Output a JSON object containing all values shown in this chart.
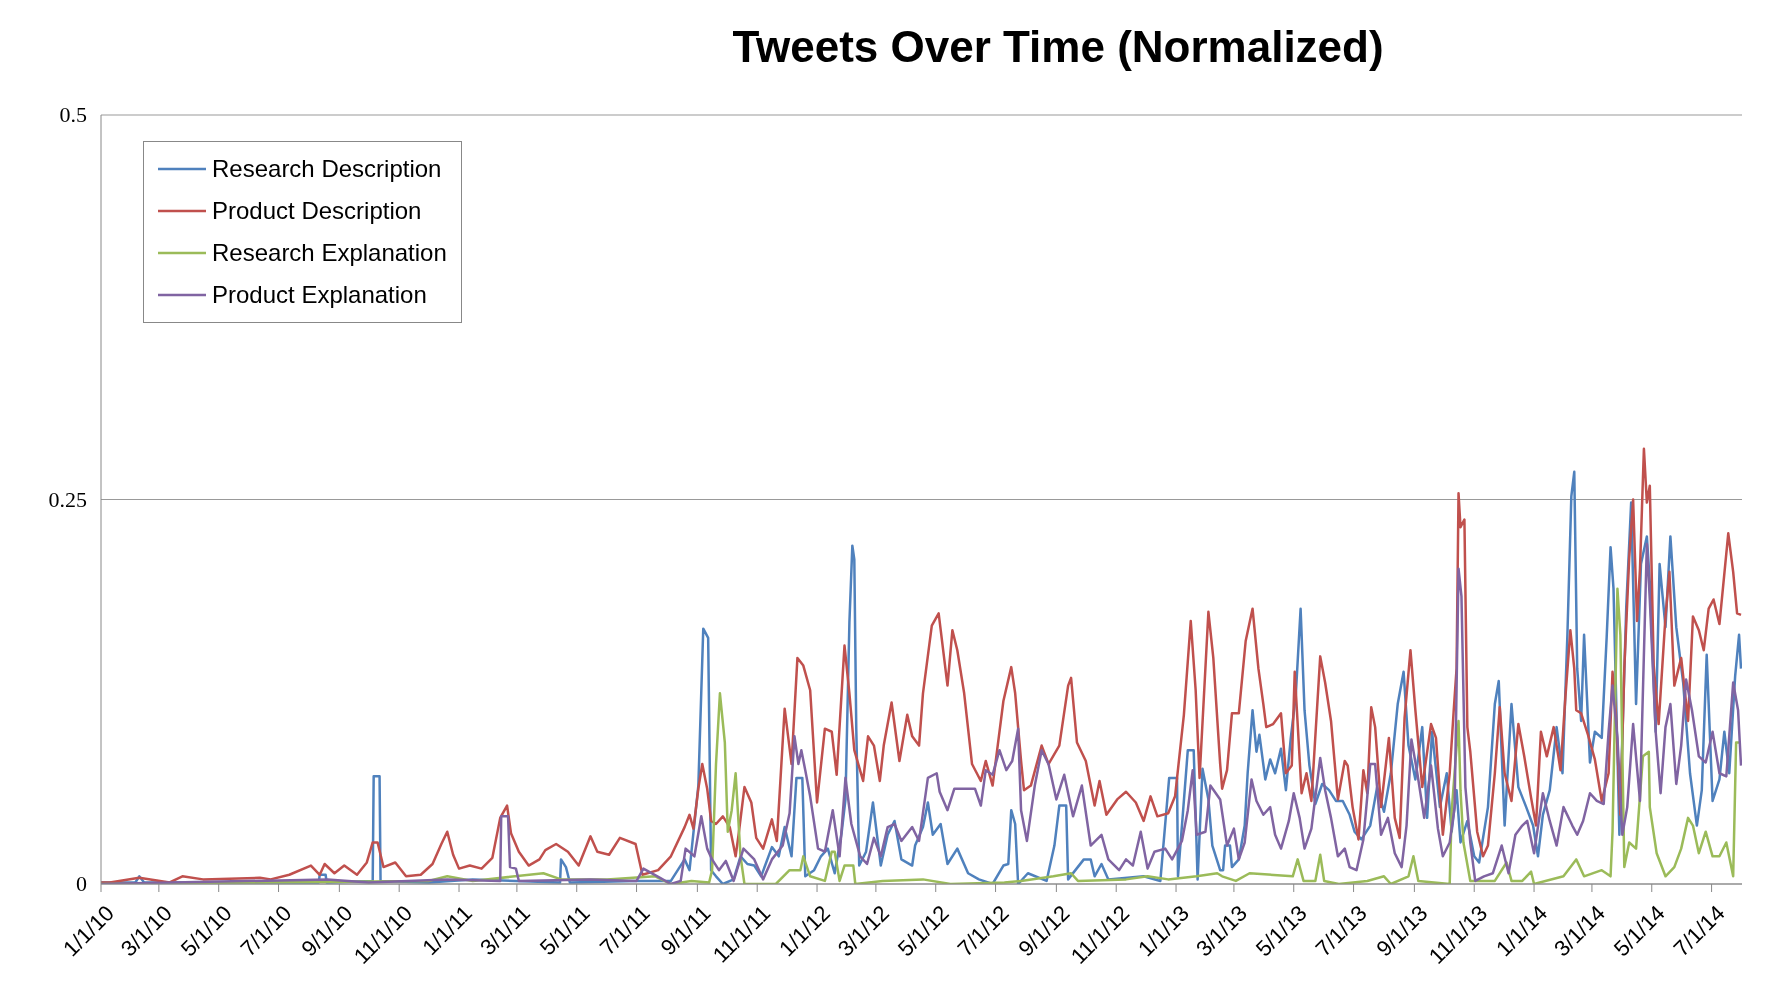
{
  "chart_data": {
    "type": "line",
    "title": "Tweets Over Time (Normalized)",
    "xlim": [
      "2010-01-01",
      "2014-08-01"
    ],
    "xticks": [
      {
        "value": "2010-01-01",
        "label": "1/1/10"
      },
      {
        "value": "2010-03-01",
        "label": "3/1/10"
      },
      {
        "value": "2010-05-01",
        "label": "5/1/10"
      },
      {
        "value": "2010-07-01",
        "label": "7/1/10"
      },
      {
        "value": "2010-09-01",
        "label": "9/1/10"
      },
      {
        "value": "2010-11-01",
        "label": "11/1/10"
      },
      {
        "value": "2011-01-01",
        "label": "1/1/11"
      },
      {
        "value": "2011-03-01",
        "label": "3/1/11"
      },
      {
        "value": "2011-05-01",
        "label": "5/1/11"
      },
      {
        "value": "2011-07-01",
        "label": "7/1/11"
      },
      {
        "value": "2011-09-01",
        "label": "9/1/11"
      },
      {
        "value": "2011-11-01",
        "label": "11/1/11"
      },
      {
        "value": "2012-01-01",
        "label": "1/1/12"
      },
      {
        "value": "2012-03-01",
        "label": "3/1/12"
      },
      {
        "value": "2012-05-01",
        "label": "5/1/12"
      },
      {
        "value": "2012-07-01",
        "label": "7/1/12"
      },
      {
        "value": "2012-09-01",
        "label": "9/1/12"
      },
      {
        "value": "2012-11-01",
        "label": "11/1/12"
      },
      {
        "value": "2013-01-01",
        "label": "1/1/13"
      },
      {
        "value": "2013-03-01",
        "label": "3/1/13"
      },
      {
        "value": "2013-05-01",
        "label": "5/1/13"
      },
      {
        "value": "2013-07-01",
        "label": "7/1/13"
      },
      {
        "value": "2013-09-01",
        "label": "9/1/13"
      },
      {
        "value": "2013-11-01",
        "label": "11/1/13"
      },
      {
        "value": "2014-01-01",
        "label": "1/1/14"
      },
      {
        "value": "2014-03-01",
        "label": "3/1/14"
      },
      {
        "value": "2014-05-01",
        "label": "5/1/14"
      },
      {
        "value": "2014-07-01",
        "label": "7/1/14"
      }
    ],
    "ylim": [
      0,
      0.5
    ],
    "yticks": [
      0,
      0.25,
      0.5
    ],
    "grid": "y",
    "legend": "top left",
    "series": [
      {
        "name": "Research Description",
        "color": "#4f81bd",
        "x": [
          "2010-01-01",
          "2010-02-05",
          "2010-02-09",
          "2010-02-14",
          "2010-08-11",
          "2010-08-12",
          "2010-08-18",
          "2010-08-19",
          "2010-10-05",
          "2010-10-06",
          "2010-10-12",
          "2010-10-13",
          "2010-12-01",
          "2011-01-15",
          "2011-04-14",
          "2011-04-15",
          "2011-04-20",
          "2011-04-24",
          "2011-07-01",
          "2011-08-05",
          "2011-08-19",
          "2011-08-24",
          "2011-09-02",
          "2011-09-07",
          "2011-09-12",
          "2011-09-15",
          "2011-09-20",
          "2011-09-27",
          "2011-10-08",
          "2011-10-15",
          "2011-10-22",
          "2011-10-29",
          "2011-11-05",
          "2011-11-16",
          "2011-11-23",
          "2011-11-29",
          "2011-12-06",
          "2011-12-11",
          "2011-12-17",
          "2011-12-20",
          "2011-12-29",
          "2012-01-05",
          "2012-01-12",
          "2012-01-19",
          "2012-01-26",
          "2012-01-30",
          "2012-02-03",
          "2012-02-06",
          "2012-02-08",
          "2012-02-10",
          "2012-02-13",
          "2012-02-20",
          "2012-02-27",
          "2012-03-06",
          "2012-03-13",
          "2012-03-20",
          "2012-03-27",
          "2012-04-07",
          "2012-04-10",
          "2012-04-18",
          "2012-04-23",
          "2012-04-28",
          "2012-05-06",
          "2012-05-13",
          "2012-05-23",
          "2012-06-03",
          "2012-06-14",
          "2012-06-28",
          "2012-07-09",
          "2012-07-14",
          "2012-07-17",
          "2012-07-21",
          "2012-07-24",
          "2012-08-03",
          "2012-08-22",
          "2012-08-30",
          "2012-09-04",
          "2012-09-11",
          "2012-09-13",
          "2012-09-29",
          "2012-10-06",
          "2012-10-10",
          "2012-10-17",
          "2012-10-24",
          "2012-11-29",
          "2012-12-16",
          "2012-12-25",
          "2013-01-02",
          "2013-01-03",
          "2013-01-13",
          "2013-01-19",
          "2013-01-23",
          "2013-01-28",
          "2013-02-03",
          "2013-02-07",
          "2013-02-15",
          "2013-02-18",
          "2013-02-20",
          "2013-02-25",
          "2013-02-27",
          "2013-03-06",
          "2013-03-12",
          "2013-03-15",
          "2013-03-20",
          "2013-03-24",
          "2013-03-27",
          "2013-04-02",
          "2013-04-07",
          "2013-04-12",
          "2013-04-18",
          "2013-04-23",
          "2013-04-28",
          "2013-05-03",
          "2013-05-08",
          "2013-05-12",
          "2013-05-17",
          "2013-05-23",
          "2013-05-30",
          "2013-06-06",
          "2013-06-13",
          "2013-06-20",
          "2013-06-27",
          "2013-07-02",
          "2013-07-09",
          "2013-07-18",
          "2013-07-25",
          "2013-08-01",
          "2013-08-08",
          "2013-08-15",
          "2013-08-21",
          "2013-08-26",
          "2013-09-02",
          "2013-09-09",
          "2013-09-14",
          "2013-09-19",
          "2013-09-27",
          "2013-10-04",
          "2013-10-09",
          "2013-10-14",
          "2013-10-18",
          "2013-10-25",
          "2013-11-01",
          "2013-11-06",
          "2013-11-15",
          "2013-11-22",
          "2013-11-26",
          "2013-12-02",
          "2013-12-09",
          "2013-12-16",
          "2013-12-24",
          "2013-12-31",
          "2014-01-05",
          "2014-01-10",
          "2014-01-17",
          "2014-01-24",
          "2014-01-30",
          "2014-02-04",
          "2014-02-08",
          "2014-02-11",
          "2014-02-14",
          "2014-02-18",
          "2014-02-21",
          "2014-02-27",
          "2014-03-04",
          "2014-03-11",
          "2014-03-16",
          "2014-03-20",
          "2014-03-23",
          "2014-03-29",
          "2014-04-01",
          "2014-04-05",
          "2014-04-10",
          "2014-04-15",
          "2014-04-20",
          "2014-04-26",
          "2014-04-29",
          "2014-05-05",
          "2014-05-09",
          "2014-05-15",
          "2014-05-20",
          "2014-05-26",
          "2014-06-02",
          "2014-06-09",
          "2014-06-16",
          "2014-06-21",
          "2014-06-26",
          "2014-07-02",
          "2014-07-09",
          "2014-07-14",
          "2014-07-19",
          "2014-07-25",
          "2014-07-29",
          "2014-07-31"
        ],
        "values": [
          0.001,
          0.001,
          0.005,
          0.001,
          0.001,
          0.006,
          0.006,
          0.001,
          0.002,
          0.07,
          0.07,
          0.002,
          0.001,
          0.003,
          0.001,
          0.016,
          0.011,
          0.001,
          0.002,
          0.002,
          0.016,
          0.009,
          0.064,
          0.166,
          0.16,
          0.009,
          0.005,
          0.0,
          0.003,
          0.018,
          0.013,
          0.012,
          0.005,
          0.024,
          0.018,
          0.037,
          0.018,
          0.069,
          0.069,
          0.005,
          0.009,
          0.018,
          0.023,
          0.007,
          0.033,
          0.055,
          0.17,
          0.22,
          0.211,
          0.101,
          0.012,
          0.021,
          0.053,
          0.012,
          0.032,
          0.041,
          0.016,
          0.012,
          0.025,
          0.037,
          0.053,
          0.032,
          0.039,
          0.013,
          0.023,
          0.007,
          0.003,
          0.0,
          0.012,
          0.013,
          0.048,
          0.039,
          0.0,
          0.007,
          0.002,
          0.025,
          0.051,
          0.051,
          0.003,
          0.016,
          0.016,
          0.005,
          0.013,
          0.003,
          0.005,
          0.002,
          0.069,
          0.069,
          0.005,
          0.087,
          0.087,
          0.003,
          0.075,
          0.055,
          0.025,
          0.009,
          0.009,
          0.025,
          0.025,
          0.011,
          0.016,
          0.038,
          0.072,
          0.113,
          0.086,
          0.097,
          0.068,
          0.081,
          0.072,
          0.088,
          0.061,
          0.095,
          0.122,
          0.179,
          0.113,
          0.077,
          0.052,
          0.065,
          0.061,
          0.054,
          0.054,
          0.045,
          0.034,
          0.029,
          0.038,
          0.063,
          0.047,
          0.072,
          0.117,
          0.138,
          0.09,
          0.068,
          0.102,
          0.043,
          0.099,
          0.05,
          0.072,
          0.034,
          0.061,
          0.027,
          0.041,
          0.018,
          0.014,
          0.05,
          0.117,
          0.132,
          0.038,
          0.117,
          0.063,
          0.05,
          0.038,
          0.018,
          0.045,
          0.061,
          0.102,
          0.072,
          0.162,
          0.252,
          0.268,
          0.14,
          0.106,
          0.162,
          0.079,
          0.099,
          0.095,
          0.16,
          0.219,
          0.192,
          0.032,
          0.095,
          0.18,
          0.248,
          0.117,
          0.208,
          0.226,
          0.196,
          0.099,
          0.208,
          0.167,
          0.226,
          0.167,
          0.131,
          0.072,
          0.038,
          0.061,
          0.149,
          0.054,
          0.068,
          0.099,
          0.072,
          0.135,
          0.162,
          0.14
        ]
      },
      {
        "name": "Product Description",
        "color": "#c0504d",
        "x": [
          "2010-01-01",
          "2010-01-10",
          "2010-02-09",
          "2010-03-12",
          "2010-03-25",
          "2010-04-15",
          "2010-06-12",
          "2010-06-23",
          "2010-07-12",
          "2010-08-03",
          "2010-08-12",
          "2010-08-17",
          "2010-08-27",
          "2010-09-06",
          "2010-09-19",
          "2010-09-29",
          "2010-10-05",
          "2010-10-10",
          "2010-10-16",
          "2010-10-28",
          "2010-11-08",
          "2010-11-23",
          "2010-12-05",
          "2010-12-14",
          "2010-12-20",
          "2010-12-26",
          "2011-01-01",
          "2011-01-12",
          "2011-01-24",
          "2011-02-04",
          "2011-02-12",
          "2011-02-19",
          "2011-02-23",
          "2011-03-03",
          "2011-03-13",
          "2011-03-24",
          "2011-03-30",
          "2011-04-10",
          "2011-04-22",
          "2011-05-03",
          "2011-05-15",
          "2011-05-22",
          "2011-06-03",
          "2011-06-14",
          "2011-06-30",
          "2011-07-07",
          "2011-07-23",
          "2011-08-05",
          "2011-08-19",
          "2011-08-24",
          "2011-08-28",
          "2011-09-02",
          "2011-09-06",
          "2011-09-11",
          "2011-09-15",
          "2011-09-20",
          "2011-09-27",
          "2011-10-04",
          "2011-10-10",
          "2011-10-13",
          "2011-10-19",
          "2011-10-26",
          "2011-10-31",
          "2011-11-07",
          "2011-11-16",
          "2011-11-21",
          "2011-11-29",
          "2011-12-06",
          "2011-12-12",
          "2011-12-18",
          "2011-12-25",
          "2012-01-01",
          "2012-01-09",
          "2012-01-16",
          "2012-01-21",
          "2012-01-29",
          "2012-02-03",
          "2012-02-08",
          "2012-02-17",
          "2012-02-22",
          "2012-02-28",
          "2012-03-05",
          "2012-03-09",
          "2012-03-17",
          "2012-03-25",
          "2012-04-02",
          "2012-04-07",
          "2012-04-14",
          "2012-04-18",
          "2012-04-27",
          "2012-05-04",
          "2012-05-13",
          "2012-05-18",
          "2012-05-23",
          "2012-05-30",
          "2012-06-07",
          "2012-06-16",
          "2012-06-21",
          "2012-06-28",
          "2012-07-09",
          "2012-07-17",
          "2012-07-21",
          "2012-07-27",
          "2012-07-30",
          "2012-08-06",
          "2012-08-17",
          "2012-08-24",
          "2012-09-04",
          "2012-09-13",
          "2012-09-16",
          "2012-09-22",
          "2012-10-01",
          "2012-10-10",
          "2012-10-15",
          "2012-10-22",
          "2012-11-02",
          "2012-11-11",
          "2012-11-21",
          "2012-11-29",
          "2012-12-06",
          "2012-12-13",
          "2012-12-24",
          "2012-12-31",
          "2013-01-09",
          "2013-01-16",
          "2013-01-21",
          "2013-01-25",
          "2013-02-03",
          "2013-02-08",
          "2013-02-15",
          "2013-02-17",
          "2013-02-22",
          "2013-02-27",
          "2013-03-06",
          "2013-03-13",
          "2013-03-20",
          "2013-03-26",
          "2013-03-31",
          "2013-04-03",
          "2013-04-10",
          "2013-04-18",
          "2013-04-23",
          "2013-04-29",
          "2013-05-02",
          "2013-05-09",
          "2013-05-14",
          "2013-05-19",
          "2013-05-28",
          "2013-06-02",
          "2013-06-08",
          "2013-06-15",
          "2013-06-22",
          "2013-06-25",
          "2013-06-30",
          "2013-07-06",
          "2013-07-11",
          "2013-07-15",
          "2013-07-19",
          "2013-07-23",
          "2013-07-29",
          "2013-08-06",
          "2013-08-12",
          "2013-08-17",
          "2013-08-22",
          "2013-08-28",
          "2013-09-02",
          "2013-09-09",
          "2013-09-18",
          "2013-09-23",
          "2013-09-30",
          "2013-10-07",
          "2013-10-11",
          "2013-10-14",
          "2013-10-16",
          "2013-10-18",
          "2013-10-22",
          "2013-10-25",
          "2013-10-28",
          "2013-11-04",
          "2013-11-10",
          "2013-11-15",
          "2013-11-22",
          "2013-11-27",
          "2013-12-02",
          "2013-12-09",
          "2013-12-16",
          "2013-12-22",
          "2013-12-29",
          "2014-01-03",
          "2014-01-08",
          "2014-01-14",
          "2014-01-21",
          "2014-01-28",
          "2014-02-02",
          "2014-02-07",
          "2014-02-11",
          "2014-02-13",
          "2014-02-18",
          "2014-02-25",
          "2014-03-04",
          "2014-03-11",
          "2014-03-18",
          "2014-03-22",
          "2014-03-25",
          "2014-03-30",
          "2014-04-03",
          "2014-04-08",
          "2014-04-12",
          "2014-04-16",
          "2014-04-19",
          "2014-04-23",
          "2014-04-26",
          "2014-04-29",
          "2014-05-03",
          "2014-05-08",
          "2014-05-15",
          "2014-05-19",
          "2014-05-24",
          "2014-05-31",
          "2014-06-07",
          "2014-06-12",
          "2014-06-18",
          "2014-06-23",
          "2014-06-28",
          "2014-07-03",
          "2014-07-09",
          "2014-07-18",
          "2014-07-23",
          "2014-07-27",
          "2014-07-31"
        ],
        "values": [
          0.001,
          0.001,
          0.004,
          0.001,
          0.005,
          0.003,
          0.004,
          0.003,
          0.006,
          0.012,
          0.006,
          0.013,
          0.007,
          0.012,
          0.006,
          0.014,
          0.027,
          0.027,
          0.011,
          0.014,
          0.005,
          0.006,
          0.013,
          0.026,
          0.034,
          0.019,
          0.01,
          0.012,
          0.01,
          0.017,
          0.043,
          0.051,
          0.033,
          0.021,
          0.012,
          0.016,
          0.022,
          0.026,
          0.021,
          0.012,
          0.031,
          0.021,
          0.019,
          0.03,
          0.026,
          0.006,
          0.009,
          0.018,
          0.037,
          0.045,
          0.036,
          0.062,
          0.078,
          0.062,
          0.041,
          0.039,
          0.044,
          0.037,
          0.018,
          0.032,
          0.063,
          0.053,
          0.03,
          0.023,
          0.042,
          0.028,
          0.114,
          0.078,
          0.147,
          0.142,
          0.126,
          0.053,
          0.101,
          0.099,
          0.071,
          0.155,
          0.124,
          0.087,
          0.067,
          0.096,
          0.09,
          0.067,
          0.09,
          0.118,
          0.08,
          0.11,
          0.096,
          0.09,
          0.124,
          0.168,
          0.176,
          0.129,
          0.165,
          0.152,
          0.124,
          0.078,
          0.067,
          0.08,
          0.064,
          0.119,
          0.141,
          0.124,
          0.08,
          0.061,
          0.064,
          0.09,
          0.078,
          0.09,
          0.129,
          0.134,
          0.092,
          0.08,
          0.051,
          0.067,
          0.045,
          0.055,
          0.06,
          0.053,
          0.041,
          0.057,
          0.044,
          0.046,
          0.057,
          0.11,
          0.171,
          0.126,
          0.069,
          0.177,
          0.147,
          0.078,
          0.062,
          0.074,
          0.111,
          0.111,
          0.158,
          0.179,
          0.14,
          0.117,
          0.102,
          0.104,
          0.111,
          0.072,
          0.077,
          0.138,
          0.059,
          0.072,
          0.054,
          0.148,
          0.131,
          0.106,
          0.055,
          0.08,
          0.077,
          0.05,
          0.029,
          0.074,
          0.059,
          0.115,
          0.102,
          0.05,
          0.095,
          0.043,
          0.03,
          0.108,
          0.152,
          0.113,
          0.063,
          0.104,
          0.095,
          0.032,
          0.072,
          0.112,
          0.14,
          0.254,
          0.232,
          0.237,
          0.102,
          0.086,
          0.034,
          0.018,
          0.025,
          0.072,
          0.115,
          0.072,
          0.054,
          0.104,
          0.083,
          0.056,
          0.038,
          0.099,
          0.083,
          0.102,
          0.074,
          0.122,
          0.165,
          0.14,
          0.113,
          0.111,
          0.097,
          0.081,
          0.054,
          0.072,
          0.138,
          0.117,
          0.045,
          0.14,
          0.212,
          0.25,
          0.171,
          0.205,
          0.283,
          0.248,
          0.259,
          0.142,
          0.104,
          0.174,
          0.203,
          0.129,
          0.147,
          0.106,
          0.174,
          0.165,
          0.152,
          0.179,
          0.185,
          0.169,
          0.228,
          0.203,
          0.176,
          0.175
        ]
      },
      {
        "name": "Research Explanation",
        "color": "#9bbb59",
        "x": [
          "2010-01-01",
          "2010-06-01",
          "2010-12-01",
          "2010-12-20",
          "2011-01-15",
          "2011-03-28",
          "2011-04-15",
          "2011-06-01",
          "2011-07-20",
          "2011-08-05",
          "2011-08-26",
          "2011-09-13",
          "2011-09-16",
          "2011-09-20",
          "2011-09-24",
          "2011-09-29",
          "2011-10-02",
          "2011-10-06",
          "2011-10-10",
          "2011-10-15",
          "2011-10-19",
          "2011-11-20",
          "2011-12-04",
          "2011-12-15",
          "2011-12-18",
          "2011-12-25",
          "2012-01-09",
          "2012-01-16",
          "2012-01-19",
          "2012-01-24",
          "2012-01-29",
          "2012-02-07",
          "2012-02-09",
          "2012-03-08",
          "2012-04-18",
          "2012-05-16",
          "2012-07-10",
          "2012-07-27",
          "2012-08-29",
          "2012-09-16",
          "2012-09-23",
          "2012-11-11",
          "2012-12-03",
          "2012-12-24",
          "2013-01-22",
          "2013-02-12",
          "2013-02-17",
          "2013-03-03",
          "2013-03-17",
          "2013-04-30",
          "2013-05-05",
          "2013-05-11",
          "2013-05-23",
          "2013-05-28",
          "2013-06-01",
          "2013-06-16",
          "2013-07-15",
          "2013-08-01",
          "2013-08-08",
          "2013-08-26",
          "2013-08-31",
          "2013-09-05",
          "2013-10-07",
          "2013-10-09",
          "2013-10-16",
          "2013-10-18",
          "2013-10-21",
          "2013-10-28",
          "2013-11-22",
          "2013-12-04",
          "2013-12-09",
          "2013-12-20",
          "2013-12-29",
          "2014-01-01",
          "2014-01-31",
          "2014-02-13",
          "2014-02-21",
          "2014-03-11",
          "2014-03-20",
          "2014-03-22",
          "2014-03-27",
          "2014-03-30",
          "2014-04-03",
          "2014-04-08",
          "2014-04-15",
          "2014-04-22",
          "2014-04-28",
          "2014-04-29",
          "2014-05-06",
          "2014-05-15",
          "2014-05-24",
          "2014-05-31",
          "2014-06-07",
          "2014-06-12",
          "2014-06-18",
          "2014-06-25",
          "2014-07-02",
          "2014-07-09",
          "2014-07-16",
          "2014-07-23",
          "2014-07-26",
          "2014-07-31"
        ],
        "values": [
          0.0,
          0.001,
          0.002,
          0.005,
          0.002,
          0.007,
          0.003,
          0.003,
          0.005,
          0.0,
          0.002,
          0.001,
          0.009,
          0.078,
          0.124,
          0.092,
          0.034,
          0.048,
          0.072,
          0.018,
          0.0,
          0.0,
          0.009,
          0.009,
          0.018,
          0.005,
          0.002,
          0.021,
          0.021,
          0.002,
          0.012,
          0.012,
          0.0,
          0.002,
          0.003,
          0.0,
          0.001,
          0.002,
          0.005,
          0.007,
          0.002,
          0.003,
          0.005,
          0.003,
          0.005,
          0.007,
          0.005,
          0.002,
          0.007,
          0.005,
          0.016,
          0.002,
          0.002,
          0.019,
          0.002,
          0.0,
          0.002,
          0.005,
          0.0,
          0.005,
          0.018,
          0.002,
          0.0,
          0.047,
          0.106,
          0.061,
          0.027,
          0.002,
          0.002,
          0.014,
          0.002,
          0.002,
          0.008,
          0.0,
          0.005,
          0.016,
          0.005,
          0.009,
          0.005,
          0.034,
          0.192,
          0.162,
          0.011,
          0.027,
          0.023,
          0.083,
          0.086,
          0.05,
          0.02,
          0.005,
          0.011,
          0.023,
          0.043,
          0.038,
          0.02,
          0.034,
          0.018,
          0.018,
          0.027,
          0.005,
          0.092,
          0.092
        ]
      },
      {
        "name": "Product Explanation",
        "color": "#8064a2",
        "x": [
          "2010-01-01",
          "2010-08-20",
          "2010-10-01",
          "2010-12-20",
          "2011-02-12",
          "2011-02-13",
          "2011-02-20",
          "2011-02-22",
          "2011-02-28",
          "2011-03-03",
          "2011-05-15",
          "2011-07-01",
          "2011-07-08",
          "2011-07-25",
          "2011-08-05",
          "2011-08-15",
          "2011-08-20",
          "2011-08-29",
          "2011-09-05",
          "2011-09-11",
          "2011-09-16",
          "2011-09-23",
          "2011-09-30",
          "2011-10-08",
          "2011-10-18",
          "2011-10-29",
          "2011-11-07",
          "2011-11-16",
          "2011-11-27",
          "2011-12-04",
          "2011-12-09",
          "2011-12-13",
          "2011-12-16",
          "2011-12-20",
          "2011-12-25",
          "2012-01-02",
          "2012-01-09",
          "2012-01-17",
          "2012-01-24",
          "2012-01-30",
          "2012-02-05",
          "2012-02-14",
          "2012-02-21",
          "2012-02-28",
          "2012-03-06",
          "2012-03-13",
          "2012-03-20",
          "2012-03-27",
          "2012-04-07",
          "2012-04-14",
          "2012-04-23",
          "2012-05-02",
          "2012-05-05",
          "2012-05-13",
          "2012-05-20",
          "2012-06-03",
          "2012-06-10",
          "2012-06-16",
          "2012-06-21",
          "2012-06-28",
          "2012-07-05",
          "2012-07-12",
          "2012-07-18",
          "2012-07-24",
          "2012-07-27",
          "2012-08-02",
          "2012-08-10",
          "2012-08-17",
          "2012-08-24",
          "2012-09-01",
          "2012-09-09",
          "2012-09-18",
          "2012-09-27",
          "2012-10-06",
          "2012-10-17",
          "2012-10-24",
          "2012-11-04",
          "2012-11-11",
          "2012-11-18",
          "2012-11-26",
          "2012-12-03",
          "2012-12-10",
          "2012-12-21",
          "2012-12-28",
          "2013-01-07",
          "2013-01-13",
          "2013-01-18",
          "2013-01-22",
          "2013-01-31",
          "2013-02-05",
          "2013-02-15",
          "2013-02-22",
          "2013-03-01",
          "2013-03-06",
          "2013-03-12",
          "2013-03-19",
          "2013-03-24",
          "2013-03-31",
          "2013-04-07",
          "2013-04-12",
          "2013-04-18",
          "2013-04-26",
          "2013-05-01",
          "2013-05-07",
          "2013-05-12",
          "2013-05-19",
          "2013-05-28",
          "2013-06-02",
          "2013-06-08",
          "2013-06-15",
          "2013-06-22",
          "2013-06-27",
          "2013-07-04",
          "2013-07-11",
          "2013-07-18",
          "2013-07-23",
          "2013-07-29",
          "2013-08-05",
          "2013-08-12",
          "2013-08-19",
          "2013-08-24",
          "2013-08-29",
          "2013-09-04",
          "2013-09-11",
          "2013-09-18",
          "2013-09-25",
          "2013-09-30",
          "2013-10-07",
          "2013-10-12",
          "2013-10-16",
          "2013-10-19",
          "2013-10-23",
          "2013-10-28",
          "2013-11-02",
          "2013-11-11",
          "2013-11-20",
          "2013-11-29",
          "2013-12-06",
          "2013-12-13",
          "2013-12-20",
          "2013-12-25",
          "2014-01-01",
          "2014-01-10",
          "2014-01-17",
          "2014-01-24",
          "2014-01-31",
          "2014-02-09",
          "2014-02-14",
          "2014-02-20",
          "2014-02-27",
          "2014-03-06",
          "2014-03-13",
          "2014-03-18",
          "2014-03-22",
          "2014-03-27",
          "2014-04-01",
          "2014-04-06",
          "2014-04-12",
          "2014-04-19",
          "2014-04-26",
          "2014-04-29",
          "2014-05-05",
          "2014-05-10",
          "2014-05-15",
          "2014-05-20",
          "2014-05-26",
          "2014-05-31",
          "2014-06-05",
          "2014-06-11",
          "2014-06-18",
          "2014-06-25",
          "2014-07-02",
          "2014-07-09",
          "2014-07-16",
          "2014-07-23",
          "2014-07-28",
          "2014-07-31"
        ],
        "values": [
          0.0,
          0.003,
          0.001,
          0.003,
          0.002,
          0.044,
          0.044,
          0.011,
          0.01,
          0.002,
          0.003,
          0.002,
          0.01,
          0.004,
          0.0,
          0.002,
          0.023,
          0.018,
          0.044,
          0.023,
          0.016,
          0.009,
          0.015,
          0.002,
          0.023,
          0.016,
          0.003,
          0.016,
          0.025,
          0.046,
          0.096,
          0.078,
          0.087,
          0.074,
          0.057,
          0.023,
          0.021,
          0.048,
          0.018,
          0.069,
          0.039,
          0.018,
          0.013,
          0.03,
          0.018,
          0.037,
          0.039,
          0.028,
          0.037,
          0.028,
          0.069,
          0.072,
          0.06,
          0.048,
          0.062,
          0.062,
          0.062,
          0.051,
          0.074,
          0.071,
          0.087,
          0.074,
          0.08,
          0.101,
          0.048,
          0.028,
          0.064,
          0.087,
          0.078,
          0.055,
          0.071,
          0.044,
          0.064,
          0.025,
          0.032,
          0.016,
          0.009,
          0.016,
          0.012,
          0.034,
          0.01,
          0.021,
          0.023,
          0.016,
          0.028,
          0.048,
          0.074,
          0.032,
          0.034,
          0.064,
          0.055,
          0.025,
          0.036,
          0.016,
          0.027,
          0.068,
          0.054,
          0.045,
          0.05,
          0.032,
          0.023,
          0.041,
          0.059,
          0.043,
          0.023,
          0.036,
          0.082,
          0.061,
          0.043,
          0.018,
          0.023,
          0.011,
          0.009,
          0.029,
          0.078,
          0.078,
          0.032,
          0.043,
          0.02,
          0.011,
          0.038,
          0.094,
          0.072,
          0.043,
          0.077,
          0.036,
          0.018,
          0.027,
          0.05,
          0.205,
          0.187,
          0.063,
          0.027,
          0.002,
          0.005,
          0.007,
          0.025,
          0.007,
          0.032,
          0.038,
          0.041,
          0.02,
          0.059,
          0.041,
          0.025,
          0.05,
          0.038,
          0.032,
          0.041,
          0.059,
          0.054,
          0.052,
          0.099,
          0.129,
          0.095,
          0.032,
          0.05,
          0.104,
          0.054,
          0.221,
          0.185,
          0.099,
          0.059,
          0.102,
          0.117,
          0.065,
          0.09,
          0.133,
          0.113,
          0.083,
          0.079,
          0.099,
          0.072,
          0.07,
          0.131,
          0.113,
          0.077
        ]
      }
    ]
  }
}
